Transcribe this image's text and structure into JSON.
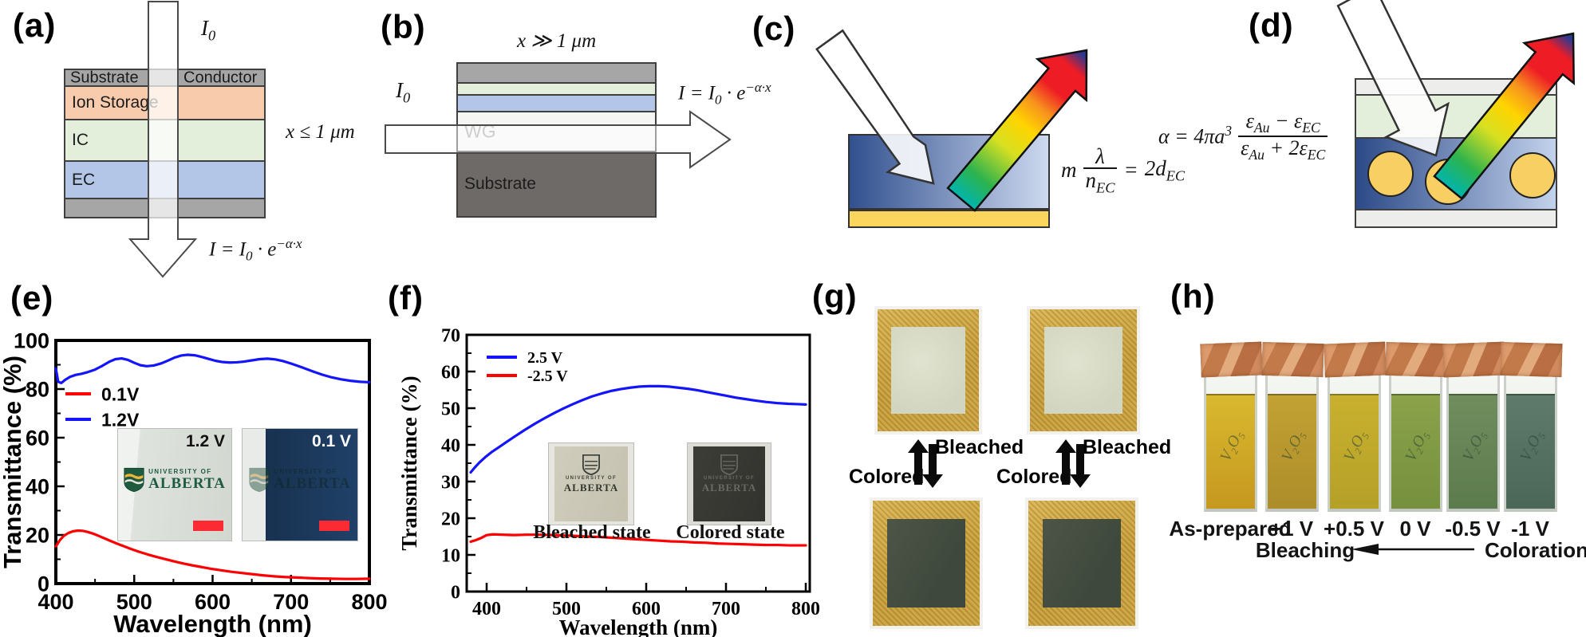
{
  "panels": {
    "a": {
      "label": "(a)",
      "incident": {
        "base": "I",
        "sub": "0"
      },
      "thickness": "x ≤ 1 μm",
      "equation": {
        "p1": "I = I",
        "sub": "0",
        "p2": " · e",
        "sup": "−α·x"
      },
      "stack": {
        "header_left": "Substrate",
        "header_right": "Conductor",
        "rows": [
          {
            "label": "Ion Storage"
          },
          {
            "label": "IC"
          },
          {
            "label": "EC"
          }
        ]
      }
    },
    "b": {
      "label": "(b)",
      "incident": {
        "base": "I",
        "sub": "0"
      },
      "thickness": "x ≫ 1 μm",
      "equation": {
        "p1": "I = I",
        "sub": "0",
        "p2": " · e",
        "sup": "−α·x"
      },
      "wg_label": "WG",
      "substrate_label": "Substrate"
    },
    "c": {
      "label": "(c)",
      "equation": {
        "m": "m",
        "num": "λ",
        "den_base": "n",
        "den_sub": "EC",
        "eq": "=",
        "rhs": "2d",
        "rhs_sub": "EC"
      }
    },
    "d": {
      "label": "(d)",
      "equation": {
        "lhs": "α = 4πa",
        "exp": "3",
        "num1": "ε",
        "num1_sub": "Au",
        "num2": " − ε",
        "num2_sub": "EC",
        "den1": "ε",
        "den1_sub": "Au",
        "den2": " + 2ε",
        "den2_sub": "EC"
      }
    },
    "e": {
      "label": "(e)",
      "insets": [
        {
          "voltage": "1.2 V",
          "logo_top": "UNIVERSITY OF",
          "logo_name": "ALBERTA"
        },
        {
          "voltage": "0.1 V",
          "logo_top": "UNIVERSITY OF",
          "logo_name": "ALBERTA"
        }
      ]
    },
    "f": {
      "label": "(f)",
      "insets": [
        {
          "caption": "Bleached state",
          "logo_top": "UNIVERSITY OF",
          "logo_name": "ALBERTA"
        },
        {
          "caption": "Colored state",
          "logo_top": "UNIVERSITY OF",
          "logo_name": "ALBERTA"
        }
      ]
    },
    "g": {
      "label": "(g)",
      "groups": [
        {
          "bleached": "Bleached",
          "colored": "Colored"
        },
        {
          "bleached": "Bleached",
          "colored": "Colored"
        }
      ]
    },
    "h": {
      "label": "(h)",
      "bleaching": "Bleaching",
      "coloration": "Coloration",
      "cuvettes": [
        {
          "label": "As-prepared",
          "ink": "V₂O₅",
          "liquid_top": "#d9b92f",
          "liquid_bottom": "#c6981f"
        },
        {
          "label": "+1 V",
          "ink": "V₂O₅",
          "liquid_top": "#c2a233",
          "liquid_bottom": "#ad8d29"
        },
        {
          "label": "+0.5 V",
          "ink": "V₂O₅",
          "liquid_top": "#c9b12e",
          "liquid_bottom": "#b5a028"
        },
        {
          "label": "0 V",
          "ink": "V₂O₅",
          "liquid_top": "#8ba24a",
          "liquid_bottom": "#75903e"
        },
        {
          "label": "-0.5 V",
          "ink": "V₂O₅",
          "liquid_top": "#708d5e",
          "liquid_bottom": "#5c7b4d"
        },
        {
          "label": "-1 V",
          "ink": "V₂O₅",
          "liquid_top": "#5e7b6b",
          "liquid_bottom": "#4a6758"
        }
      ]
    }
  },
  "colors": {
    "conductor_gray": "#a6a6a6",
    "ion_storage": "#f7cbac",
    "ic_green": "#e4efdb",
    "ec_blue": "#b3c6e7",
    "waveguide": "#f5f5f4",
    "substrate_dark": "#6e6a67",
    "gold_layer": "#fbd55e",
    "gold_particle": "#f7cf63",
    "scale_bar_red": "#fb2a33",
    "rainbow": [
      "#00b5ad",
      "#2eb34d",
      "#d7e021",
      "#ffd400",
      "#f7941d",
      "#ee1c25",
      "#2b3990"
    ]
  },
  "chart_data": [
    {
      "id": "e",
      "type": "line",
      "xlabel": "Wavelength (nm)",
      "ylabel": "Transmittance (%)",
      "xlim": [
        400,
        800
      ],
      "ylim": [
        0,
        100
      ],
      "xticks": [
        400,
        500,
        600,
        700,
        800
      ],
      "yticks": [
        0,
        20,
        40,
        60,
        80,
        100
      ],
      "xminor": 50,
      "yminor": 10,
      "grid": false,
      "legend_position": "upper-left",
      "legend_pos": [
        82,
        204
      ],
      "legend_dy": 32,
      "legend_line": 32,
      "legend_fs": 23,
      "legend": [
        {
          "label": "0.1V",
          "color": "#ff0000"
        },
        {
          "label": "1.2V",
          "color": "#1414ff"
        }
      ],
      "series": [
        {
          "name": "0.1V",
          "color": "#ff0000",
          "x": [
            400,
            405,
            410,
            416,
            422,
            428,
            434,
            440,
            447,
            454,
            462,
            470,
            479,
            488,
            497,
            507,
            517,
            528,
            539,
            550,
            562,
            574,
            586,
            598,
            610,
            623,
            636,
            650,
            664,
            678,
            692,
            706,
            720,
            736,
            752,
            768,
            784,
            800
          ],
          "y": [
            15.3,
            17.8,
            19.6,
            20.8,
            21.5,
            21.8,
            21.7,
            21.3,
            20.6,
            19.7,
            18.6,
            17.5,
            16.3,
            15.2,
            14.1,
            13.0,
            12.0,
            11.0,
            10.1,
            9.2,
            8.3,
            7.5,
            6.8,
            6.1,
            5.5,
            4.9,
            4.4,
            3.9,
            3.4,
            3.0,
            2.7,
            2.5,
            2.3,
            2.1,
            2.0,
            1.9,
            1.9,
            2.0
          ]
        },
        {
          "name": "1.2V",
          "color": "#1414ff",
          "x": [
            400,
            403,
            407,
            412,
            418,
            425,
            433,
            441,
            450,
            459,
            468,
            476,
            484,
            492,
            500,
            508,
            516,
            525,
            534,
            543,
            552,
            560,
            568,
            577,
            586,
            595,
            604,
            613,
            622,
            631,
            640,
            650,
            660,
            670,
            680,
            690,
            700,
            710,
            720,
            730,
            740,
            752,
            764,
            776,
            788,
            800
          ],
          "y": [
            88.5,
            83.0,
            82.5,
            83.8,
            85.0,
            85.8,
            86.3,
            87.0,
            88.0,
            89.5,
            91.2,
            92.3,
            92.6,
            92.0,
            90.8,
            89.8,
            89.4,
            89.7,
            90.5,
            91.7,
            93.0,
            93.8,
            94.1,
            93.9,
            93.2,
            92.4,
            91.6,
            91.1,
            90.9,
            91.0,
            91.3,
            91.8,
            92.3,
            92.5,
            92.2,
            91.5,
            90.5,
            89.4,
            88.2,
            87.0,
            85.9,
            84.8,
            84.0,
            83.4,
            83.0,
            82.8
          ]
        }
      ]
    },
    {
      "id": "f",
      "type": "line",
      "xlabel": "Wavelength (nm)",
      "ylabel": "Transmittance (%)",
      "xlim": [
        375,
        805
      ],
      "ylim": [
        0,
        70
      ],
      "xticks": [
        400,
        500,
        600,
        700,
        800
      ],
      "yticks": [
        0,
        10,
        20,
        30,
        40,
        50,
        60,
        70
      ],
      "xminor": 50,
      "yminor": 5,
      "grid": false,
      "legend_position": "upper-left",
      "legend_pos": [
        120,
        158
      ],
      "legend_dy": 23,
      "legend_line": 38,
      "legend_fs": 20,
      "legend": [
        {
          "label": "2.5 V",
          "color": "#1414ff"
        },
        {
          "label": "-2.5 V",
          "color": "#ff0000"
        }
      ],
      "series": [
        {
          "name": "2.5 V",
          "color": "#1414ff",
          "x": [
            380,
            385,
            391,
            398,
            406,
            415,
            425,
            436,
            448,
            460,
            472,
            484,
            496,
            508,
            520,
            532,
            544,
            556,
            568,
            580,
            592,
            604,
            616,
            628,
            640,
            652,
            664,
            676,
            688,
            700,
            712,
            724,
            736,
            750,
            764,
            778,
            790,
            800
          ],
          "y": [
            32.5,
            33.8,
            35.2,
            36.6,
            38.0,
            39.3,
            40.8,
            42.4,
            44.1,
            45.7,
            47.2,
            48.6,
            49.9,
            51.1,
            52.2,
            53.2,
            54.0,
            54.7,
            55.2,
            55.6,
            55.9,
            56.0,
            56.0,
            55.9,
            55.6,
            55.3,
            54.9,
            54.4,
            53.9,
            53.4,
            52.9,
            52.5,
            52.1,
            51.7,
            51.4,
            51.2,
            51.1,
            51.0
          ]
        },
        {
          "name": "-2.5 V",
          "color": "#ff0000",
          "x": [
            380,
            386,
            393,
            400,
            408,
            420,
            435,
            450,
            465,
            480,
            495,
            510,
            525,
            540,
            555,
            570,
            585,
            600,
            615,
            630,
            645,
            660,
            675,
            690,
            705,
            720,
            735,
            750,
            765,
            780,
            800
          ],
          "y": [
            13.6,
            14.0,
            14.6,
            15.4,
            15.6,
            15.5,
            15.4,
            15.5,
            15.5,
            15.4,
            15.3,
            15.2,
            15.0,
            14.9,
            14.7,
            14.5,
            14.3,
            14.1,
            13.9,
            13.7,
            13.6,
            13.4,
            13.3,
            13.1,
            13.0,
            12.9,
            12.8,
            12.7,
            12.7,
            12.6,
            12.6
          ]
        }
      ]
    }
  ]
}
